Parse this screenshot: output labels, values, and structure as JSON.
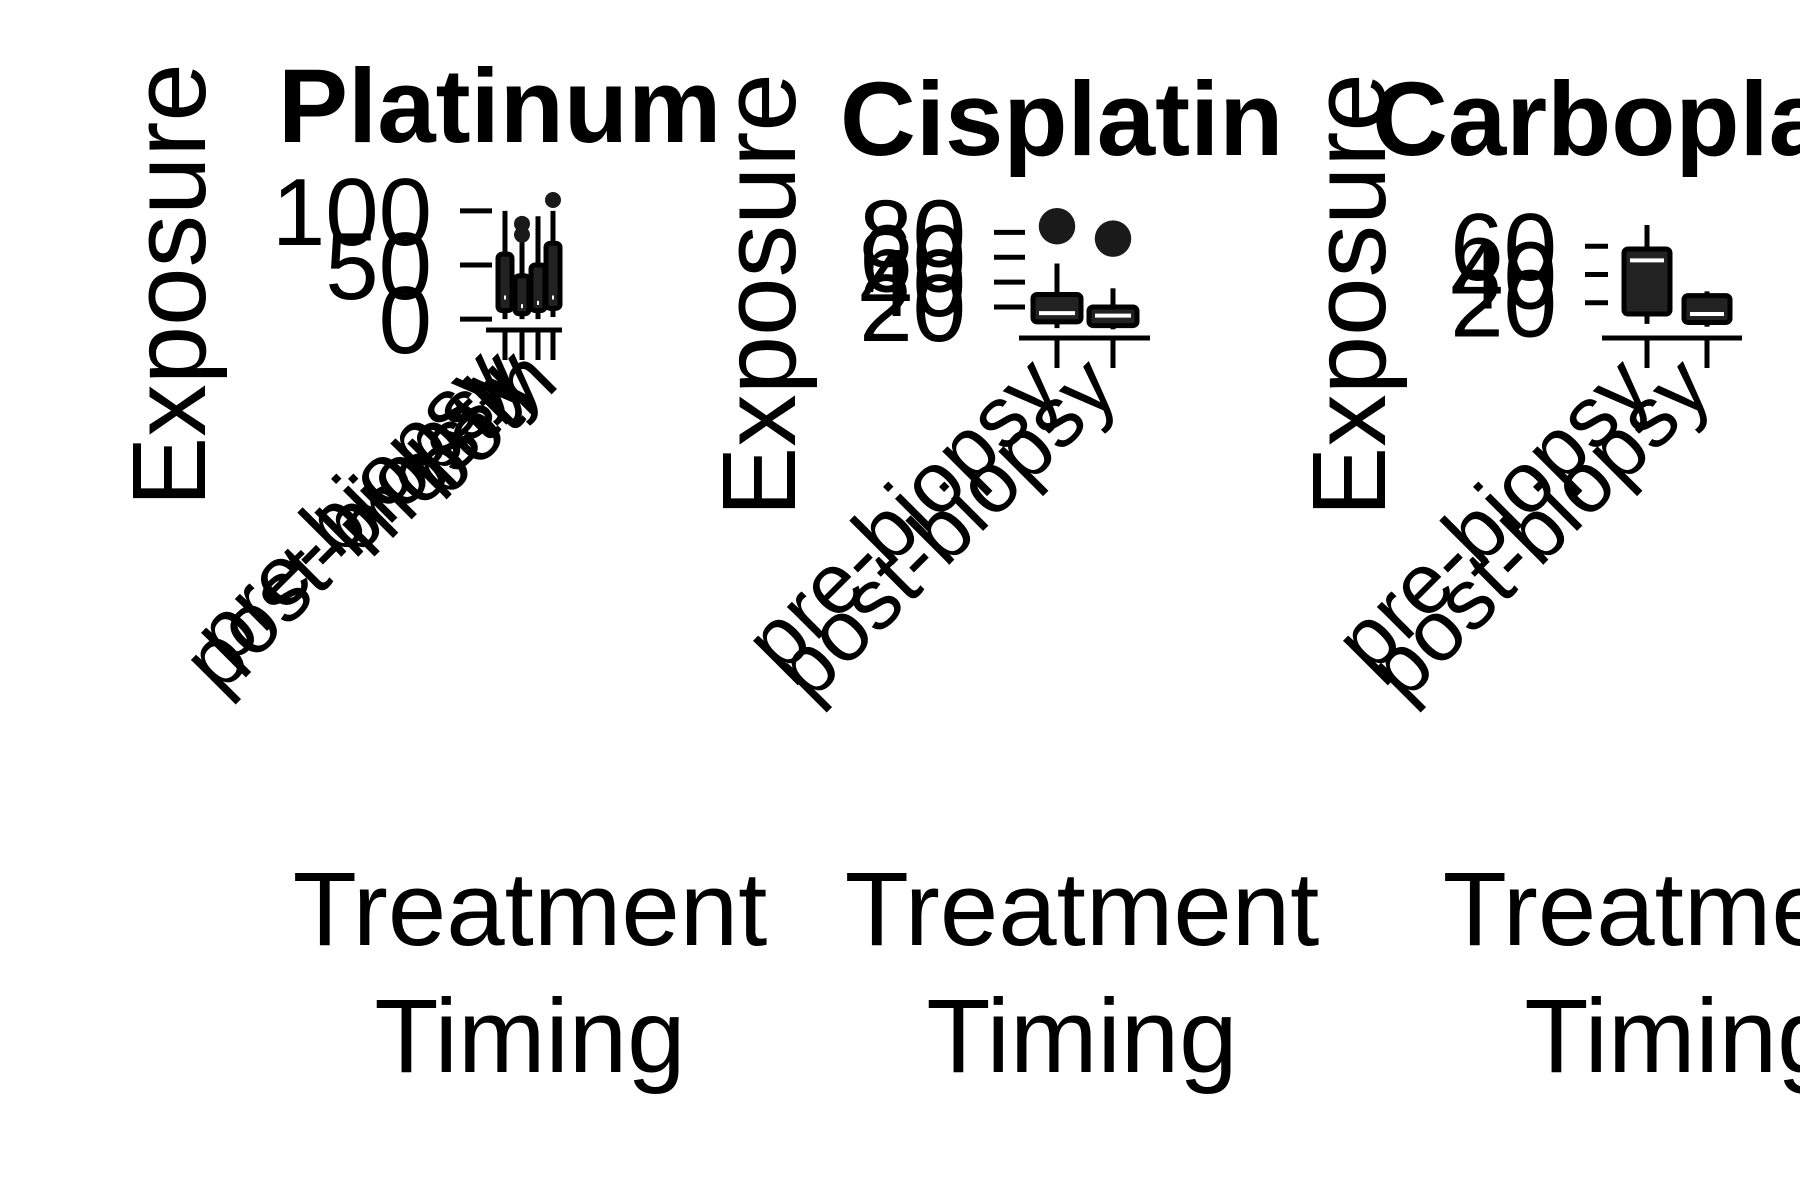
{
  "colors": {
    "box_fill": "#222222",
    "outlier": "#1a1a1a",
    "median": "#ffffff",
    "background": "#ffffff",
    "text": "#000000"
  },
  "chart_data": [
    {
      "type": "box",
      "title": "Platinum",
      "xlabel": "Treatment Timing",
      "ylabel": "Exposure",
      "categories": [
        "pre-biopsy",
        "post-biopsy",
        "mostly",
        "both"
      ],
      "yticks": [
        0,
        50,
        100
      ],
      "ylim": [
        -10,
        110
      ],
      "boxes": [
        {
          "category": "pre-biopsy",
          "min": 0,
          "q1": 8,
          "median": 20,
          "q3": 60,
          "max": 100,
          "outliers": []
        },
        {
          "category": "post-biopsy",
          "min": 0,
          "q1": 5,
          "median": 12,
          "q3": 40,
          "max": 75,
          "outliers": [
            78,
            88
          ]
        },
        {
          "category": "mostly",
          "min": 0,
          "q1": 8,
          "median": 15,
          "q3": 50,
          "max": 95,
          "outliers": []
        },
        {
          "category": "both",
          "min": 2,
          "q1": 10,
          "median": 20,
          "q3": 70,
          "max": 100,
          "outliers": [
            110
          ]
        }
      ]
    },
    {
      "type": "box",
      "title": "Cisplatin",
      "xlabel": "Treatment Timing",
      "ylabel": "Exposure",
      "categories": [
        "pre-biopsy",
        "post-biopsy"
      ],
      "yticks": [
        20,
        40,
        60,
        80
      ],
      "ylim": [
        -5,
        90
      ],
      "boxes": [
        {
          "category": "pre-biopsy",
          "min": 3,
          "q1": 8,
          "median": 15,
          "q3": 30,
          "max": 55,
          "outliers": [
            85
          ]
        },
        {
          "category": "post-biopsy",
          "min": 2,
          "q1": 5,
          "median": 13,
          "q3": 20,
          "max": 35,
          "outliers": [
            75
          ]
        }
      ]
    },
    {
      "type": "box",
      "title": "Carboplatin",
      "xlabel": "Treatment Timing",
      "ylabel": "Exposure",
      "categories": [
        "pre-biopsy",
        "post-biopsy"
      ],
      "yticks": [
        20,
        40,
        60
      ],
      "ylim": [
        -5,
        75
      ],
      "boxes": [
        {
          "category": "pre-biopsy",
          "min": 5,
          "q1": 12,
          "median": 50,
          "q3": 58,
          "max": 75,
          "outliers": []
        },
        {
          "category": "post-biopsy",
          "min": 3,
          "q1": 6,
          "median": 12,
          "q3": 25,
          "max": 28,
          "outliers": []
        }
      ]
    }
  ]
}
